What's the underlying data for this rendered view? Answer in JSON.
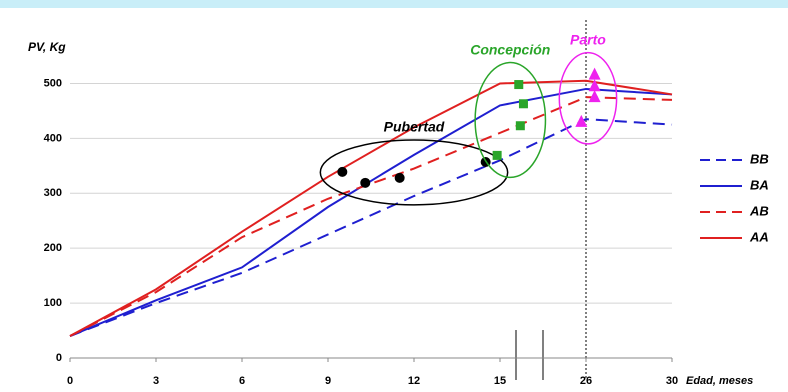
{
  "chart_data": {
    "type": "line",
    "y_label": "PV, Kg",
    "x_label": "Edad, meses",
    "ylim": [
      0,
      550
    ],
    "yticks": [
      0,
      100,
      200,
      300,
      400,
      500
    ],
    "xlim": [
      0,
      30
    ],
    "xticks": [
      0,
      3,
      6,
      9,
      12,
      15,
      26,
      30
    ],
    "x": [
      0,
      3,
      6,
      9,
      12,
      15,
      26,
      30
    ],
    "series": [
      {
        "name": "BB",
        "color": "#1f1fd0",
        "dash": true,
        "values": [
          40,
          100,
          155,
          225,
          295,
          360,
          435,
          425
        ]
      },
      {
        "name": "BA",
        "color": "#1f1fd0",
        "dash": false,
        "values": [
          40,
          105,
          165,
          275,
          370,
          460,
          490,
          480
        ]
      },
      {
        "name": "AB",
        "color": "#e02020",
        "dash": true,
        "values": [
          40,
          120,
          220,
          290,
          345,
          410,
          475,
          470
        ]
      },
      {
        "name": "AA",
        "color": "#e02020",
        "dash": false,
        "values": [
          40,
          125,
          230,
          330,
          420,
          500,
          505,
          480
        ]
      }
    ],
    "markers": [
      {
        "label": "Pubertad",
        "shape": "circle",
        "color": "#000000",
        "ring": "#000000",
        "x": [
          9.5,
          10.3,
          11.5,
          14.5
        ],
        "values": [
          339,
          319,
          328,
          357
        ]
      },
      {
        "label": "Concepción",
        "shape": "square",
        "color": "#2aa52a",
        "ring": "#2aa52a",
        "x": [
          14.9,
          17.4,
          18.0,
          17.6
        ],
        "values": [
          369,
          498,
          463,
          423
        ]
      },
      {
        "label": "Parto",
        "shape": "triangle",
        "color": "#ee22ee",
        "ring": "#ee22ee",
        "x": [
          25.4,
          26.4,
          26.4,
          26.4
        ],
        "values": [
          430,
          516,
          495,
          475
        ]
      }
    ]
  }
}
